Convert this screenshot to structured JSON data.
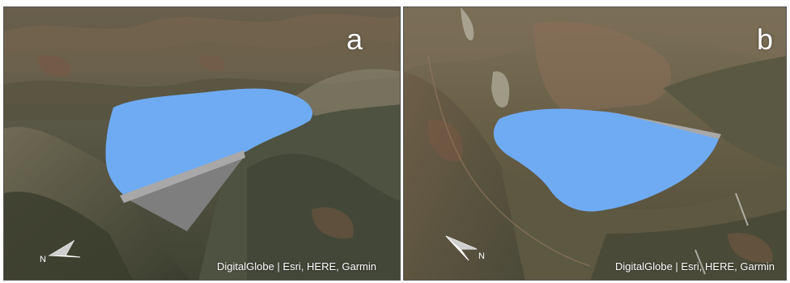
{
  "panels": [
    {
      "letter": "a",
      "credit": "DigitalGlobe | Esri, HERE, Garmin",
      "north_label": "N"
    },
    {
      "letter": "b",
      "credit": "DigitalGlobe | Esri, HERE, Garmin",
      "north_label": "N"
    }
  ],
  "colors": {
    "reservoir": "#6fabf3",
    "dam_crest": "#a8a8a8",
    "dam_face": "#7e7e7e",
    "terrain_dark": "#4a4a38",
    "terrain_mid": "#6e6650",
    "terrain_red": "#7a5a44"
  }
}
